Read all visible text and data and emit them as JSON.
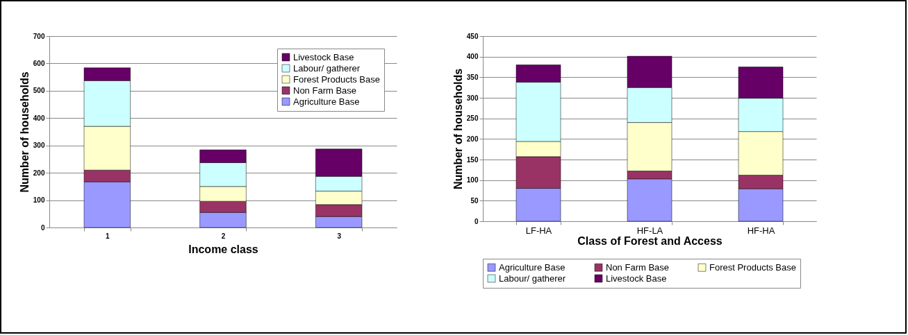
{
  "chart_data": [
    {
      "type": "bar",
      "stacked": true,
      "xlabel": "Income class",
      "ylabel": "Number of households",
      "categories": [
        "1",
        "2",
        "3"
      ],
      "ylim": [
        0,
        700
      ],
      "yticks": [
        0,
        100,
        200,
        300,
        400,
        500,
        600,
        700
      ],
      "grid": "y",
      "legend": "top right",
      "series": [
        {
          "name": "Agriculture Base",
          "color": "#9999ff",
          "values": [
            167,
            55,
            40
          ]
        },
        {
          "name": "Non Farm Base",
          "color": "#993366",
          "values": [
            43,
            41,
            44
          ]
        },
        {
          "name": "Forest Products Base",
          "color": "#ffffcc",
          "values": [
            160,
            54,
            49
          ]
        },
        {
          "name": "Labour/ gatherer",
          "color": "#ccffff",
          "values": [
            167,
            87,
            54
          ]
        },
        {
          "name": "Livestock Base",
          "color": "#660066",
          "values": [
            47,
            47,
            100
          ]
        }
      ]
    },
    {
      "type": "bar",
      "stacked": true,
      "xlabel": "Class of Forest and Access",
      "ylabel": "Number of households",
      "categories": [
        "LF-HA",
        "HF-LA",
        "HF-HA"
      ],
      "ylim": [
        0,
        450
      ],
      "yticks": [
        0,
        50,
        100,
        150,
        200,
        250,
        300,
        350,
        400,
        450
      ],
      "grid": "y",
      "legend": "bottom",
      "series": [
        {
          "name": "Agriculture Base",
          "color": "#9999ff",
          "values": [
            80,
            103,
            79
          ]
        },
        {
          "name": "Non Farm Base",
          "color": "#993366",
          "values": [
            77,
            19,
            33
          ]
        },
        {
          "name": "Forest Products Base",
          "color": "#ffffcc",
          "values": [
            37,
            118,
            106
          ]
        },
        {
          "name": "Labour/ gatherer",
          "color": "#ccffff",
          "values": [
            144,
            85,
            81
          ]
        },
        {
          "name": "Livestock Base",
          "color": "#660066",
          "values": [
            42,
            76,
            76
          ]
        }
      ]
    }
  ]
}
